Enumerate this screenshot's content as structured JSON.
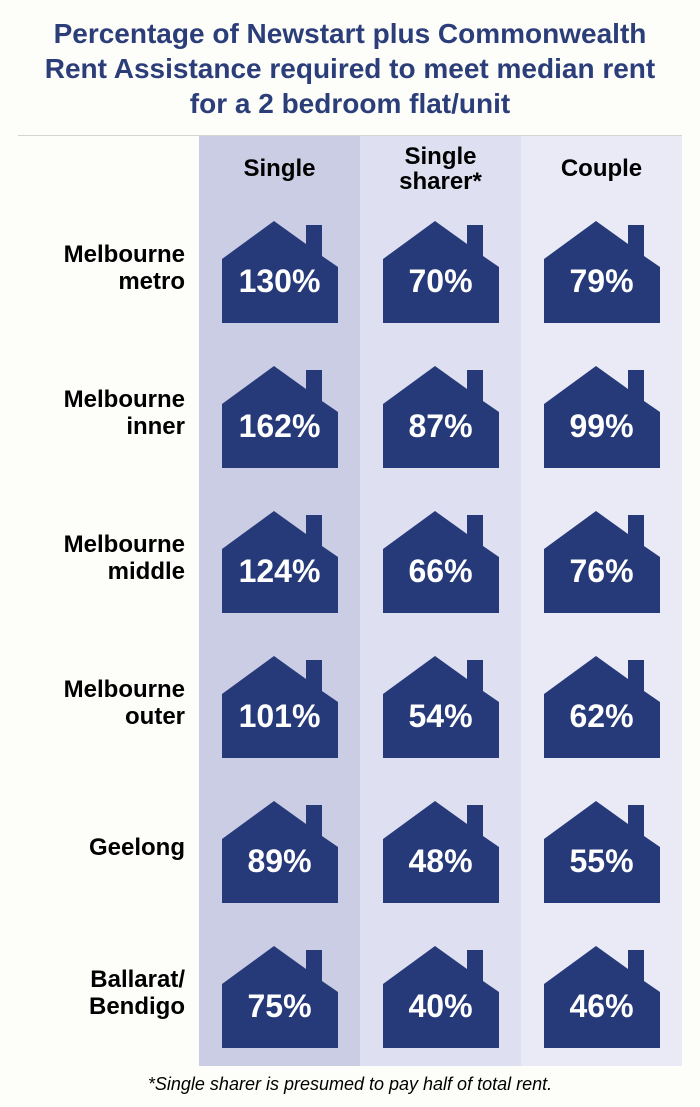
{
  "title": "Percentage of Newstart plus Commonwealth Rent Assistance required to meet median rent for a 2 bedroom flat/unit",
  "footnote": "*Single sharer is presumed to pay half of total rent.",
  "columns": [
    {
      "label": "Single",
      "bg": "#cbcde4"
    },
    {
      "label": "Single sharer*",
      "bg": "#dedff0"
    },
    {
      "label": "Couple",
      "bg": "#eaeaf7"
    }
  ],
  "rows": [
    {
      "label": "Melbourne metro",
      "label_split": [
        "Melbourne",
        "metro"
      ]
    },
    {
      "label": "Melbourne inner",
      "label_split": [
        "Melbourne",
        "inner"
      ]
    },
    {
      "label": "Melbourne middle",
      "label_split": [
        "Melbourne",
        "middle"
      ]
    },
    {
      "label": "Melbourne outer",
      "label_split": [
        "Melbourne",
        "outer"
      ]
    },
    {
      "label": "Geelong",
      "label_split": [
        "Geelong"
      ]
    },
    {
      "label": "Ballarat/ Bendigo",
      "label_split": [
        "Ballarat/",
        "Bendigo"
      ]
    }
  ],
  "values": [
    [
      "130%",
      "70%",
      "79%"
    ],
    [
      "162%",
      "87%",
      "99%"
    ],
    [
      "124%",
      "66%",
      "76%"
    ],
    [
      "101%",
      "54%",
      "62%"
    ],
    [
      "89%",
      "48%",
      "55%"
    ],
    [
      "75%",
      "40%",
      "46%"
    ]
  ],
  "style": {
    "house_fill": "#263a7a",
    "title_color": "#2c3e7a",
    "title_fontsize": 28,
    "header_fontsize": 24,
    "rowlabel_fontsize": 24,
    "value_fontsize": 32,
    "footnote_fontsize": 18,
    "value_color": "#ffffff",
    "page_bg": "#fdfdfa"
  }
}
